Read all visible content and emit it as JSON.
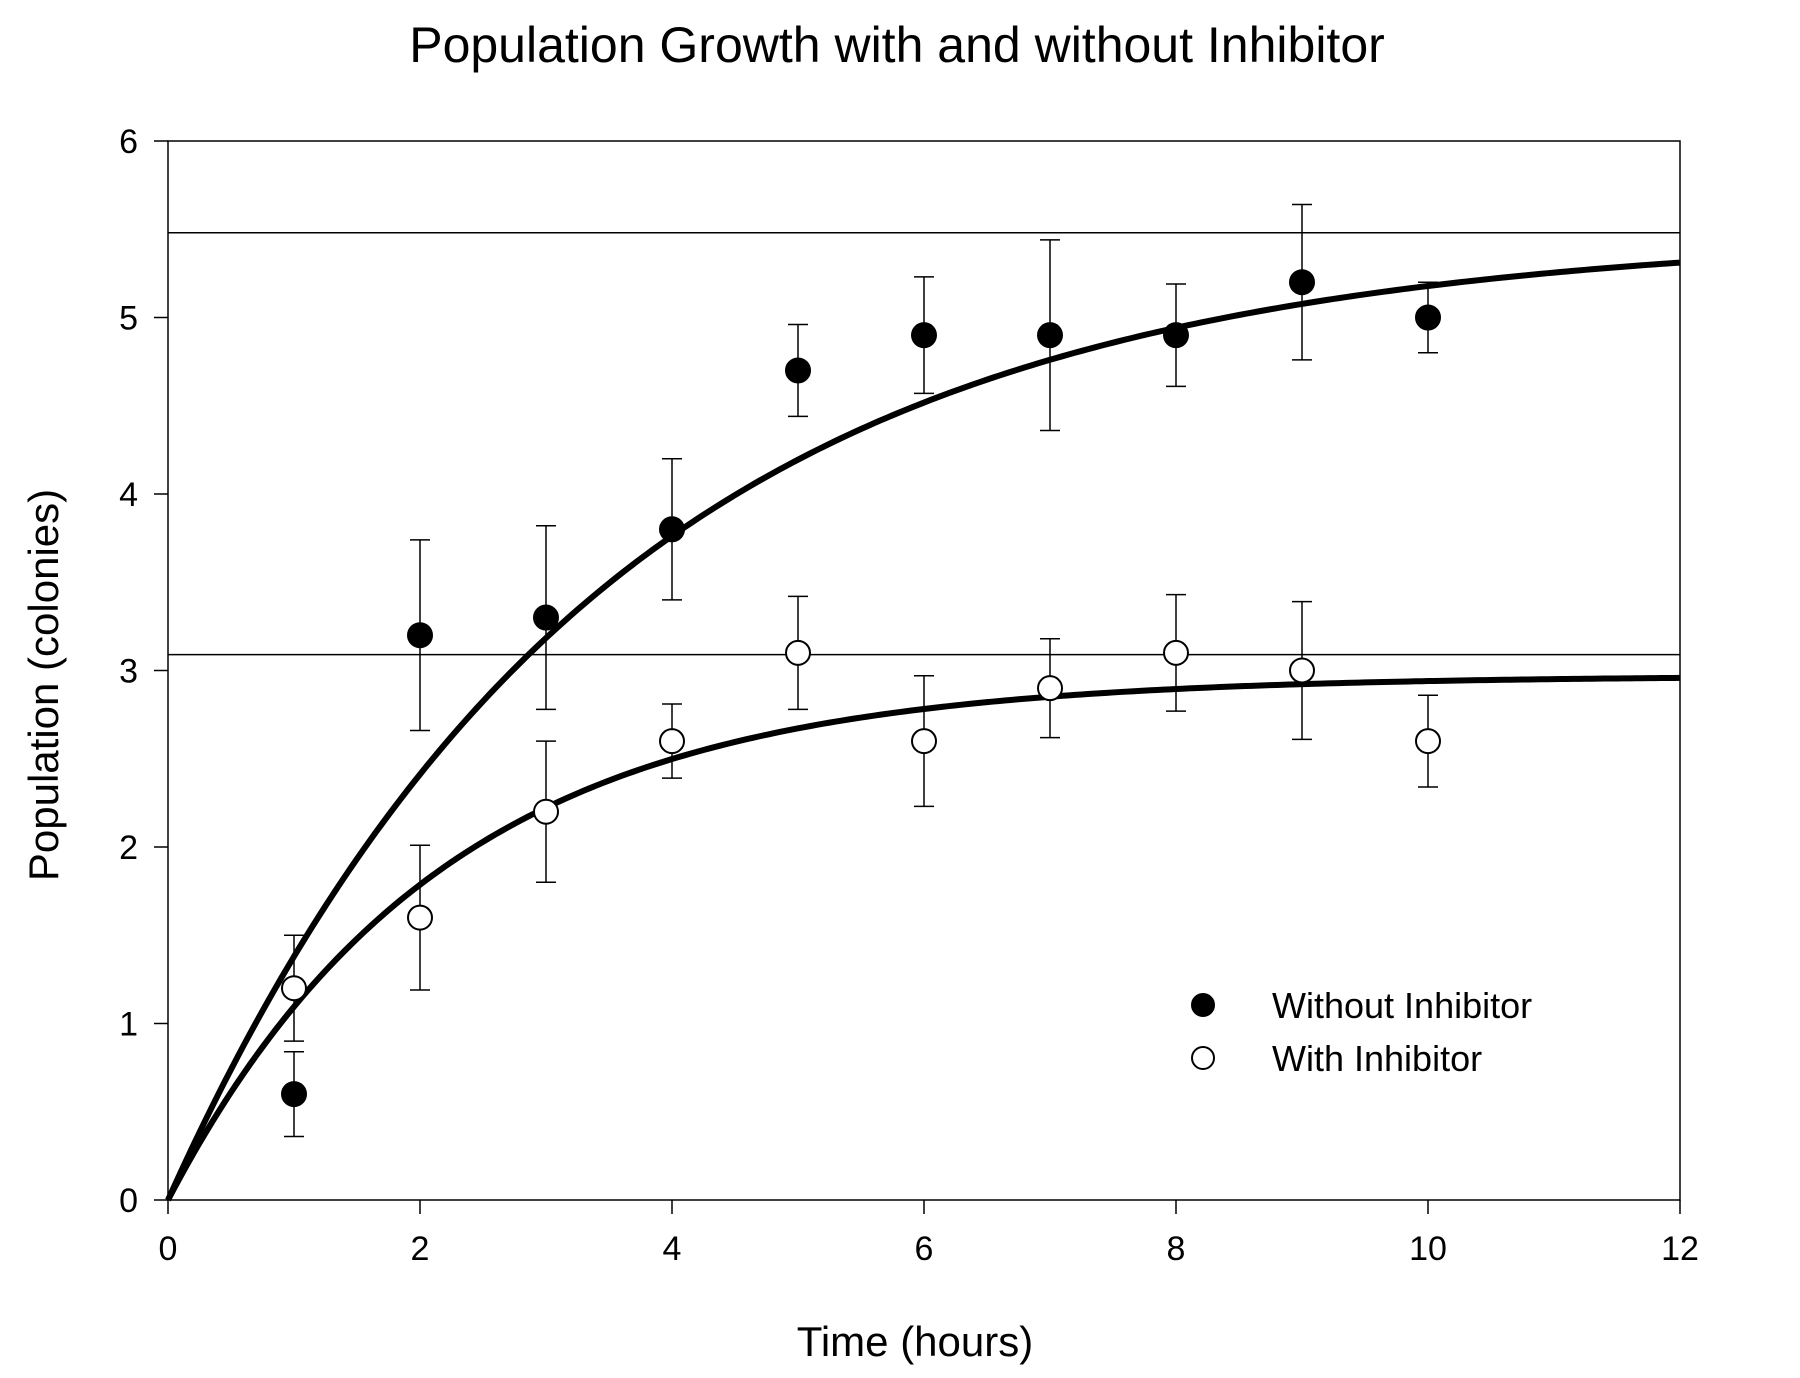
{
  "chart_data": {
    "type": "scatter",
    "title": "Population Growth with and without Inhibitor",
    "xlabel": "Time (hours)",
    "ylabel": "Population (colonies)",
    "xlim": [
      0,
      12
    ],
    "ylim": [
      0,
      6
    ],
    "xticks": [
      0,
      2,
      4,
      6,
      8,
      10,
      12
    ],
    "yticks": [
      0,
      1,
      2,
      3,
      4,
      5,
      6
    ],
    "grid": false,
    "legend_position": "lower-right",
    "reference_lines": [
      5.48,
      3.09
    ],
    "series": [
      {
        "name": "Without Inhibitor",
        "marker": "filled-circle",
        "color": "#000000",
        "x": [
          1,
          2,
          3,
          4,
          5,
          6,
          7,
          8,
          9,
          10
        ],
        "y": [
          0.6,
          3.2,
          3.3,
          3.8,
          4.7,
          4.9,
          4.9,
          4.9,
          5.2,
          5.0
        ],
        "error": [
          0.24,
          0.54,
          0.52,
          0.4,
          0.26,
          0.33,
          0.54,
          0.29,
          0.44,
          0.2
        ],
        "fit": {
          "model": "plateau",
          "ymax": 5.48,
          "k": 0.29
        }
      },
      {
        "name": "With Inhibitor",
        "marker": "open-circle",
        "color": "#000000",
        "x": [
          1,
          2,
          3,
          4,
          5,
          6,
          7,
          8,
          9,
          10
        ],
        "y": [
          1.2,
          1.6,
          2.2,
          2.6,
          3.1,
          2.6,
          2.9,
          3.1,
          3.0,
          2.6
        ],
        "error": [
          0.3,
          0.41,
          0.4,
          0.21,
          0.32,
          0.37,
          0.28,
          0.33,
          0.39,
          0.26
        ],
        "fit": {
          "model": "plateau",
          "ymax": 2.97,
          "k": 0.46
        }
      }
    ]
  }
}
